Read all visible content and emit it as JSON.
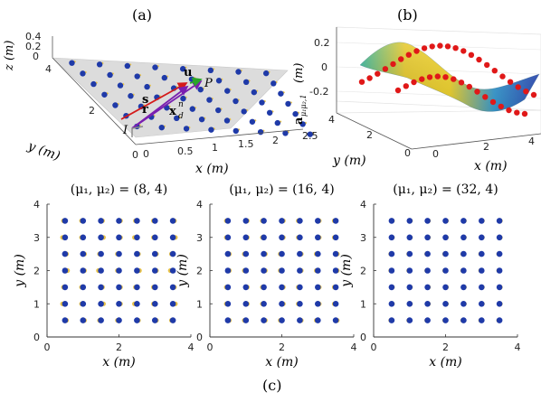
{
  "panels": {
    "a": "(a)",
    "b": "(b)",
    "c": "(c)"
  },
  "panel_a": {
    "z_label": "z (m)",
    "y_label": "y (m)",
    "x_label": "x (m)",
    "z_ticks": [
      "0.4",
      "0.2",
      "0"
    ],
    "y_ticks": [
      "0",
      "2",
      "4"
    ],
    "x_ticks": [
      "0",
      "0.5",
      "1",
      "1.5",
      "2",
      "2.5"
    ],
    "vectors": {
      "s": "s",
      "r": "r",
      "u": "u",
      "x": "x",
      "x_sub": "d",
      "x_sup": "n",
      "P": "P",
      "I": "I"
    },
    "colors": {
      "element": "#1f3aa8",
      "stem": "#e8c34a",
      "s": "#d41a1a",
      "r": "#7a1fb0",
      "u": "#2aa52a",
      "x": "#7a1fb0"
    }
  },
  "panel_b": {
    "y_label_main": "a",
    "y_label_sub": "μ₁μ₂,1",
    "y_label_unit": "(m)",
    "z_ticks": [
      "0.2",
      "0",
      "-0.2"
    ],
    "y_label": "y (m)",
    "y_ticks": [
      "0",
      "2",
      "4"
    ],
    "x_label": "x (m)",
    "x_ticks": [
      "0",
      "2",
      "4"
    ],
    "marker_color": "#e01818"
  },
  "subplots": [
    {
      "title": "(μ₁, μ₂) = (8, 4)",
      "xlabel": "x (m)",
      "ylabel": "y (m)",
      "xticks": [
        "0",
        "2",
        "4"
      ],
      "yticks": [
        "0",
        "1",
        "2",
        "3",
        "4"
      ],
      "mu1": 8,
      "mu2": 4,
      "displacement": 0.07
    },
    {
      "title": "(μ₁, μ₂) = (16, 4)",
      "xlabel": "x (m)",
      "ylabel": "y (m)",
      "xticks": [
        "0",
        "2",
        "4"
      ],
      "yticks": [
        "0",
        "1",
        "2",
        "3",
        "4"
      ],
      "mu1": 16,
      "mu2": 4,
      "displacement": 0.07
    },
    {
      "title": "(μ₁, μ₂) = (32, 4)",
      "xlabel": "x (m)",
      "ylabel": "y (m)",
      "xticks": [
        "0",
        "2",
        "4"
      ],
      "yticks": [
        "0",
        "1",
        "2",
        "3",
        "4"
      ],
      "mu1": 32,
      "mu2": 4,
      "displacement": 0.04
    }
  ],
  "grid": {
    "x_positions": [
      0.5,
      1.0,
      1.5,
      2.0,
      2.5,
      3.0,
      3.5
    ],
    "y_positions": [
      0.5,
      1.0,
      1.5,
      2.0,
      2.5,
      3.0,
      3.5
    ],
    "dot_color": "#1f3aa8",
    "shadow_color": "#e8c34a"
  }
}
